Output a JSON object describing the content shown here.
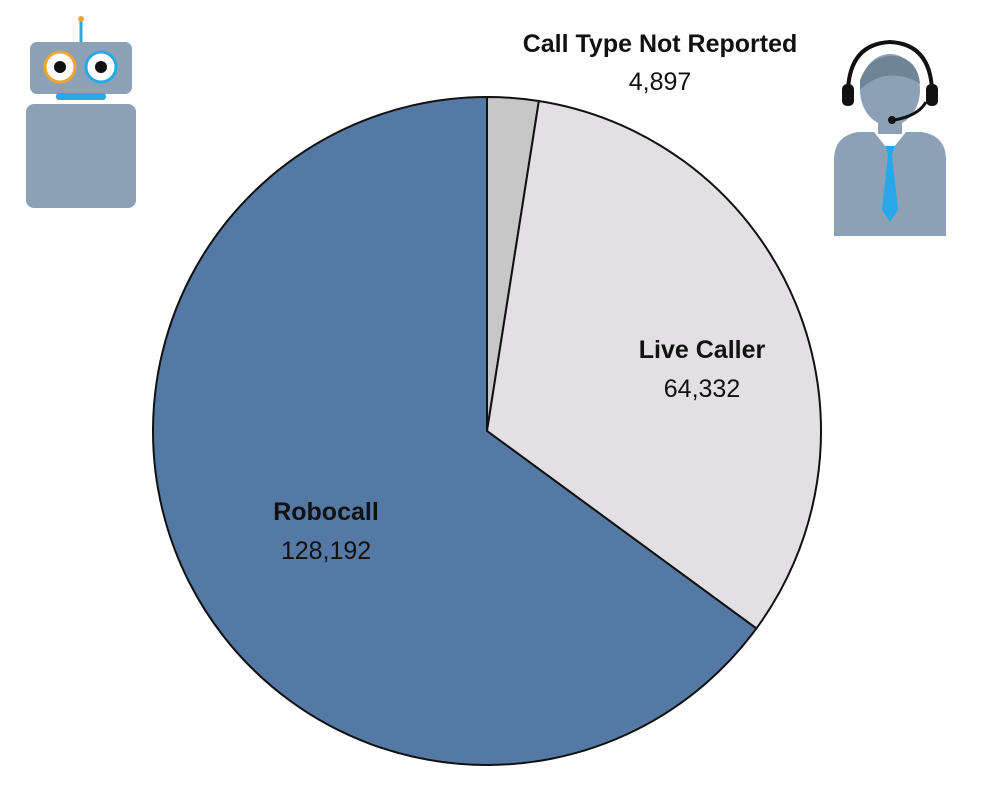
{
  "chart_data": {
    "type": "pie",
    "title": "",
    "series": [
      {
        "slices": [
          {
            "label": "Call Type Not Reported",
            "value": 4897,
            "value_text": "4,897",
            "color": "#c8c7c8"
          },
          {
            "label": "Live Caller",
            "value": 64332,
            "value_text": "64,332",
            "color": "#e2e0e2"
          },
          {
            "label": "Robocall",
            "value": 128192,
            "value_text": "128,192",
            "color": "#5579a5"
          }
        ]
      }
    ],
    "start_angle": "12 o'clock",
    "direction": "clockwise",
    "slice_outline_color": "#111111",
    "legend": "none (data labels on chart)"
  },
  "icons": {
    "robot": {
      "name": "robot-icon",
      "body_color": "#8ca1b5",
      "eye_ring_left": "#f0a530",
      "eye_ring_right": "#28a8e8",
      "mouth_color": "#28a8e8"
    },
    "agent": {
      "name": "call-center-agent-icon",
      "body_color": "#8ca1b5",
      "tie_color": "#28a8e8",
      "headset_color": "#111111"
    }
  }
}
